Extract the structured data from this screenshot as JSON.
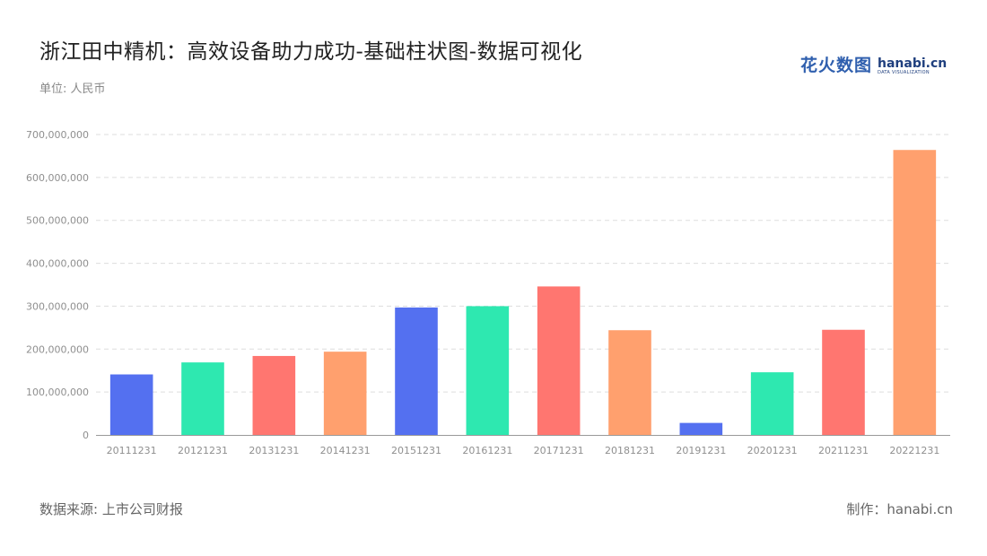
{
  "header": {
    "title": "浙江田中精机：高效设备助力成功-基础柱状图-数据可视化",
    "unit": "单位: 人民币"
  },
  "logo": {
    "cn": "花火数图",
    "en": "hanabi.cn",
    "en_sub": "DATA VISUALIZATION"
  },
  "footer": {
    "source": "数据来源: 上市公司财报",
    "credit": "制作：hanabi.cn"
  },
  "chart_data": {
    "type": "bar",
    "categories": [
      "20111231",
      "20121231",
      "20131231",
      "20141231",
      "20151231",
      "20161231",
      "20171231",
      "20181231",
      "20191231",
      "20201231",
      "20211231",
      "20221231"
    ],
    "values": [
      141000000,
      169000000,
      184000000,
      194000000,
      297000000,
      300000000,
      346000000,
      244000000,
      28000000,
      146000000,
      245000000,
      664000000
    ],
    "colors": [
      "#5470f0",
      "#2ee8b0",
      "#ff7670",
      "#ffa06e"
    ],
    "yticks": [
      "0",
      "100,000,000",
      "200,000,000",
      "300,000,000",
      "400,000,000",
      "500,000,000",
      "600,000,000",
      "700,000,000"
    ],
    "ylim": [
      0,
      700000000
    ],
    "grid": "horizontal-dashed"
  }
}
